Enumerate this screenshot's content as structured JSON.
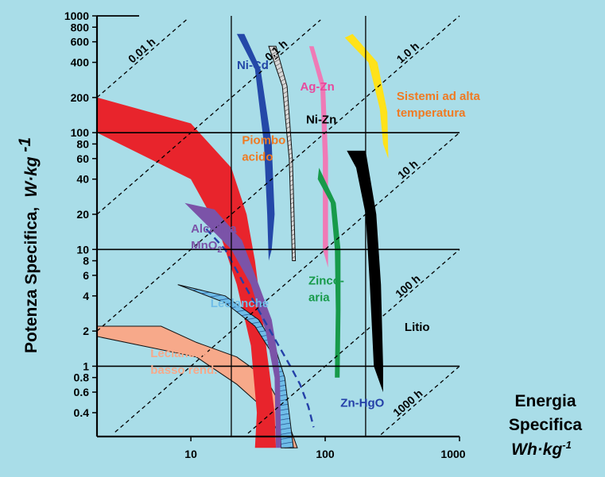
{
  "chart_data": {
    "type": "area",
    "title": "",
    "xlabel": {
      "line1": "Energia",
      "line2": "Specifica",
      "unit": "Wh·kg",
      "unit_sup": "-1"
    },
    "ylabel": {
      "text": "Potenza Specifica,",
      "unit": "W·kg",
      "unit_sup": "-1"
    },
    "x_scale": "log",
    "y_scale": "log",
    "xlim": [
      2,
      1000
    ],
    "ylim": [
      0.25,
      1000
    ],
    "x_ticks": [
      10,
      100,
      1000
    ],
    "x_tick_labels": [
      "10",
      "100",
      "1000"
    ],
    "y_ticks": [
      0.4,
      0.6,
      0.8,
      1,
      2,
      4,
      6,
      8,
      10,
      20,
      40,
      60,
      80,
      100,
      200,
      400,
      600,
      800,
      1000
    ],
    "y_tick_labels": [
      "0.4",
      "0.6",
      "0.8",
      "1",
      "2",
      "4",
      "6",
      "8",
      "10",
      "20",
      "40",
      "60",
      "80",
      "100",
      "200",
      "400",
      "600",
      "800",
      "1000"
    ],
    "major_grid_y": [
      1,
      10,
      100
    ],
    "major_grid_x": [
      20,
      200
    ],
    "time_lines": [
      {
        "label": "0.01 h",
        "hours": 0.01
      },
      {
        "label": "0.1 h",
        "hours": 0.1
      },
      {
        "label": "1.0 h",
        "hours": 1
      },
      {
        "label": "10 h",
        "hours": 10
      },
      {
        "label": "100 h",
        "hours": 100
      },
      {
        "label": "1000 h",
        "hours": 1000
      }
    ],
    "series": [
      {
        "name": "Leclanché basso rend.",
        "color": "#f7a98a",
        "outline": [
          [
            2,
            2.2
          ],
          [
            6,
            2.2
          ],
          [
            11,
            1.6
          ],
          [
            22,
            1.2
          ],
          [
            36,
            0.8
          ],
          [
            50,
            0.4
          ],
          [
            62,
            0.2
          ],
          [
            50,
            0.2
          ],
          [
            38,
            0.4
          ],
          [
            22,
            0.7
          ],
          [
            11,
            1.2
          ],
          [
            2,
            1.8
          ]
        ],
        "label_pos": [
          5,
          1.2
        ]
      },
      {
        "name": "Piombo acido",
        "color": "#e8242c",
        "outline": [
          [
            2,
            200
          ],
          [
            10,
            120
          ],
          [
            20,
            50
          ],
          [
            26,
            20
          ],
          [
            30,
            8
          ],
          [
            38,
            1
          ],
          [
            42,
            0.4
          ],
          [
            43,
            0.2
          ],
          [
            30,
            0.2
          ],
          [
            31,
            0.4
          ],
          [
            28,
            1.5
          ],
          [
            22,
            5
          ],
          [
            16,
            15
          ],
          [
            10,
            40
          ],
          [
            2,
            100
          ]
        ],
        "label_pos": [
          24,
          80
        ],
        "label_color": "#f07a22"
      },
      {
        "name": "Leclanché",
        "color": "#6fbde8",
        "hatch": true,
        "outline": [
          [
            8,
            5
          ],
          [
            18,
            4
          ],
          [
            32,
            2.5
          ],
          [
            42,
            1.5
          ],
          [
            50,
            0.8
          ],
          [
            58,
            0.2
          ],
          [
            47,
            0.2
          ],
          [
            45,
            0.6
          ],
          [
            40,
            1.3
          ],
          [
            30,
            2.2
          ],
          [
            18,
            3.5
          ],
          [
            8,
            5
          ]
        ],
        "label_pos": [
          14,
          3.2
        ]
      },
      {
        "name": "Alcalina MnO2",
        "color": "#7b53a8",
        "outline": [
          [
            9,
            25
          ],
          [
            15,
            22
          ],
          [
            24,
            12
          ],
          [
            32,
            5
          ],
          [
            40,
            2.5
          ],
          [
            44,
            1.3
          ],
          [
            46,
            0.8
          ],
          [
            47,
            0.2
          ],
          [
            43,
            0.2
          ],
          [
            42,
            0.8
          ],
          [
            36,
            2
          ],
          [
            28,
            5
          ],
          [
            20,
            10
          ],
          [
            12,
            18
          ],
          [
            9,
            25
          ]
        ],
        "label_pos": [
          10,
          14
        ],
        "label_color": "#7b53a8"
      },
      {
        "name": "Ni-Cd",
        "color": "#2448a8",
        "outline": [
          [
            25,
            700
          ],
          [
            33,
            350
          ],
          [
            40,
            80
          ],
          [
            42,
            20
          ],
          [
            40,
            10
          ],
          [
            38,
            8
          ],
          [
            37,
            20
          ],
          [
            35,
            80
          ],
          [
            30,
            350
          ],
          [
            22,
            700
          ]
        ],
        "label_pos": [
          22,
          350
        ],
        "label_color": "#2448a8"
      },
      {
        "name": "Ag-Zn",
        "color": "#bcbcbc",
        "hatch": true,
        "outline": [
          [
            43,
            550
          ],
          [
            52,
            250
          ],
          [
            57,
            60
          ],
          [
            60,
            8
          ],
          [
            57,
            8
          ],
          [
            54,
            60
          ],
          [
            48,
            250
          ],
          [
            38,
            550
          ]
        ],
        "label_pos": [
          65,
          230
        ],
        "label_color": "#e8489c"
      },
      {
        "name": "Ni-Zn",
        "color": "#000000",
        "label_only": true,
        "label_pos": [
          72,
          120
        ]
      },
      {
        "name": "Sistemi ad alta temperatura",
        "color": "#ffe21a",
        "outline": [
          [
            160,
            700
          ],
          [
            245,
            400
          ],
          [
            290,
            150
          ],
          [
            295,
            60
          ],
          [
            270,
            80
          ],
          [
            255,
            160
          ],
          [
            210,
            400
          ],
          [
            140,
            650
          ]
        ],
        "label_pos": [
          340,
          190
        ],
        "label_color": "#f07a22"
      },
      {
        "name": "Zn-Ag (rosa)",
        "color": "#ef7ab6",
        "no_label": true,
        "outline": [
          [
            82,
            550
          ],
          [
            100,
            250
          ],
          [
            105,
            60
          ],
          [
            105,
            15
          ],
          [
            105,
            7
          ],
          [
            96,
            10
          ],
          [
            96,
            60
          ],
          [
            92,
            250
          ],
          [
            76,
            550
          ]
        ]
      },
      {
        "name": "Zinco-aria",
        "color": "#179a4a",
        "outline": [
          [
            90,
            50
          ],
          [
            120,
            25
          ],
          [
            130,
            10
          ],
          [
            130,
            3
          ],
          [
            128,
            0.8
          ],
          [
            118,
            0.8
          ],
          [
            120,
            3
          ],
          [
            118,
            10
          ],
          [
            110,
            25
          ],
          [
            88,
            40
          ]
        ],
        "label_pos": [
          75,
          5
        ],
        "label_color": "#179a4a"
      },
      {
        "name": "Litio",
        "color": "#000000",
        "outline": [
          [
            145,
            70
          ],
          [
            200,
            70
          ],
          [
            240,
            20
          ],
          [
            260,
            5
          ],
          [
            270,
            1
          ],
          [
            270,
            0.6
          ],
          [
            230,
            1
          ],
          [
            215,
            5
          ],
          [
            200,
            20
          ],
          [
            170,
            50
          ]
        ],
        "label_pos": [
          390,
          2
        ],
        "label_color": "#000000"
      },
      {
        "name": "Zn-HgO",
        "color": "#2440a8",
        "dashed_curve": true,
        "outline": [
          [
            13,
            15
          ],
          [
            18,
            10
          ],
          [
            25,
            5
          ],
          [
            35,
            2.5
          ],
          [
            45,
            1.5
          ],
          [
            55,
            1
          ],
          [
            65,
            0.7
          ],
          [
            75,
            0.45
          ],
          [
            82,
            0.3
          ]
        ],
        "label_pos": [
          130,
          0.45
        ],
        "label_color": "#2440a8"
      }
    ]
  }
}
